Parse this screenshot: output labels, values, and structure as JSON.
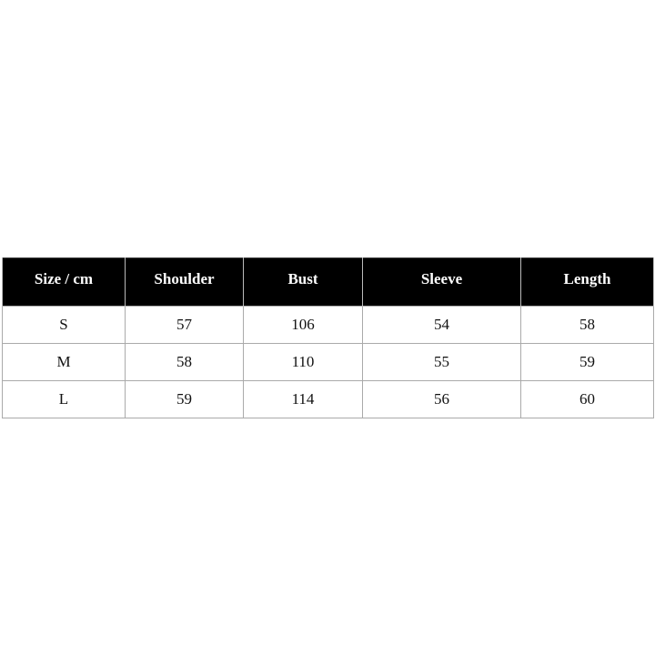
{
  "table": {
    "headers": [
      "Size / cm",
      "Shoulder",
      "Bust",
      "Sleeve",
      "Length"
    ],
    "rows": [
      [
        "S",
        "57",
        "106",
        "54",
        "58"
      ],
      [
        "M",
        "58",
        "110",
        "55",
        "59"
      ],
      [
        "L",
        "59",
        "114",
        "56",
        "60"
      ]
    ]
  }
}
